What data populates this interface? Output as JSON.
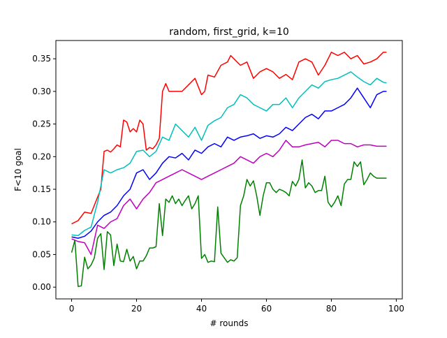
{
  "chart_data": {
    "type": "line",
    "title": "random, first_grid, k=10",
    "xlabel": "# rounds",
    "ylabel": "F<10 goal",
    "xlim": [
      -4.85,
      101.85
    ],
    "ylim": [
      -0.018,
      0.378
    ],
    "xticks": [
      0,
      20,
      40,
      60,
      80,
      100
    ],
    "xtick_labels": [
      "0",
      "20",
      "40",
      "60",
      "80",
      "100"
    ],
    "yticks": [
      0.0,
      0.05,
      0.1,
      0.15,
      0.2,
      0.25,
      0.3,
      0.35
    ],
    "ytick_labels": [
      "0.00",
      "0.05",
      "0.10",
      "0.15",
      "0.20",
      "0.25",
      "0.30",
      "0.35"
    ],
    "grid": false,
    "legend": "none",
    "series": [
      {
        "color": "#ff0000",
        "x": [
          0,
          2,
          4,
          6,
          8,
          9,
          10,
          11,
          12,
          13,
          14,
          15,
          16,
          17,
          18,
          19,
          20,
          21,
          22,
          23,
          24,
          25,
          26,
          27,
          28,
          29,
          30,
          32,
          34,
          36,
          38,
          40,
          41,
          42,
          44,
          46,
          48,
          49,
          50,
          52,
          54,
          56,
          58,
          60,
          62,
          64,
          66,
          68,
          70,
          72,
          74,
          76,
          78,
          80,
          82,
          84,
          86,
          88,
          90,
          92,
          94,
          96,
          97
        ],
        "y": [
          0.097,
          0.102,
          0.115,
          0.113,
          0.138,
          0.15,
          0.208,
          0.21,
          0.207,
          0.212,
          0.218,
          0.215,
          0.256,
          0.253,
          0.238,
          0.243,
          0.238,
          0.256,
          0.25,
          0.21,
          0.214,
          0.212,
          0.218,
          0.228,
          0.3,
          0.312,
          0.3,
          0.3,
          0.3,
          0.31,
          0.32,
          0.295,
          0.3,
          0.325,
          0.322,
          0.34,
          0.345,
          0.355,
          0.35,
          0.34,
          0.345,
          0.32,
          0.33,
          0.335,
          0.33,
          0.32,
          0.326,
          0.318,
          0.345,
          0.35,
          0.345,
          0.325,
          0.34,
          0.36,
          0.355,
          0.36,
          0.35,
          0.355,
          0.342,
          0.345,
          0.35,
          0.36,
          0.36
        ]
      },
      {
        "color": "#00bfbf",
        "x": [
          0,
          2,
          4,
          6,
          8,
          10,
          12,
          14,
          16,
          18,
          20,
          22,
          24,
          26,
          28,
          30,
          32,
          34,
          36,
          38,
          40,
          42,
          44,
          46,
          48,
          50,
          52,
          54,
          56,
          58,
          60,
          62,
          64,
          66,
          68,
          70,
          72,
          74,
          76,
          78,
          80,
          82,
          84,
          86,
          88,
          90,
          92,
          94,
          96,
          97
        ],
        "y": [
          0.08,
          0.079,
          0.087,
          0.092,
          0.13,
          0.18,
          0.175,
          0.18,
          0.183,
          0.19,
          0.208,
          0.21,
          0.2,
          0.208,
          0.23,
          0.225,
          0.25,
          0.24,
          0.23,
          0.245,
          0.225,
          0.248,
          0.255,
          0.26,
          0.275,
          0.28,
          0.295,
          0.29,
          0.28,
          0.275,
          0.27,
          0.28,
          0.28,
          0.29,
          0.275,
          0.29,
          0.3,
          0.31,
          0.305,
          0.315,
          0.318,
          0.32,
          0.325,
          0.33,
          0.322,
          0.315,
          0.31,
          0.32,
          0.314,
          0.313
        ]
      },
      {
        "color": "#0000ff",
        "x": [
          0,
          2,
          4,
          6,
          8,
          10,
          12,
          14,
          16,
          18,
          20,
          22,
          24,
          26,
          28,
          30,
          32,
          34,
          36,
          38,
          40,
          42,
          44,
          46,
          48,
          50,
          52,
          54,
          56,
          58,
          60,
          62,
          64,
          66,
          68,
          70,
          72,
          74,
          76,
          78,
          80,
          82,
          84,
          86,
          88,
          90,
          92,
          94,
          96,
          97
        ],
        "y": [
          0.077,
          0.075,
          0.078,
          0.086,
          0.1,
          0.11,
          0.115,
          0.125,
          0.14,
          0.15,
          0.175,
          0.18,
          0.165,
          0.175,
          0.19,
          0.2,
          0.198,
          0.205,
          0.195,
          0.21,
          0.205,
          0.215,
          0.22,
          0.215,
          0.23,
          0.225,
          0.23,
          0.232,
          0.235,
          0.228,
          0.232,
          0.23,
          0.235,
          0.245,
          0.24,
          0.25,
          0.26,
          0.265,
          0.258,
          0.27,
          0.27,
          0.275,
          0.28,
          0.29,
          0.305,
          0.29,
          0.275,
          0.295,
          0.3,
          0.3
        ]
      },
      {
        "color": "#bf00bf",
        "x": [
          0,
          2,
          4,
          6,
          8,
          10,
          12,
          14,
          16,
          18,
          20,
          22,
          24,
          26,
          28,
          30,
          32,
          34,
          36,
          38,
          40,
          42,
          44,
          46,
          48,
          50,
          52,
          54,
          56,
          58,
          60,
          62,
          64,
          66,
          68,
          70,
          72,
          74,
          76,
          78,
          80,
          82,
          84,
          86,
          88,
          90,
          92,
          94,
          96,
          97
        ],
        "y": [
          0.074,
          0.07,
          0.068,
          0.05,
          0.095,
          0.09,
          0.1,
          0.105,
          0.125,
          0.135,
          0.12,
          0.135,
          0.145,
          0.16,
          0.165,
          0.17,
          0.175,
          0.18,
          0.175,
          0.17,
          0.165,
          0.17,
          0.175,
          0.18,
          0.185,
          0.19,
          0.2,
          0.195,
          0.19,
          0.2,
          0.205,
          0.2,
          0.21,
          0.225,
          0.215,
          0.215,
          0.218,
          0.22,
          0.222,
          0.215,
          0.225,
          0.225,
          0.22,
          0.22,
          0.215,
          0.218,
          0.218,
          0.216,
          0.216,
          0.216
        ]
      },
      {
        "color": "#008000",
        "x": [
          0,
          1,
          2,
          3,
          4,
          5,
          6,
          7,
          8,
          9,
          10,
          11,
          12,
          13,
          14,
          15,
          16,
          17,
          18,
          19,
          20,
          21,
          22,
          23,
          24,
          25,
          26,
          27,
          28,
          29,
          30,
          31,
          32,
          33,
          34,
          35,
          36,
          37,
          38,
          39,
          40,
          41,
          42,
          43,
          44,
          45,
          46,
          47,
          48,
          49,
          50,
          51,
          52,
          53,
          54,
          55,
          56,
          57,
          58,
          59,
          60,
          61,
          62,
          63,
          64,
          65,
          66,
          67,
          68,
          69,
          70,
          71,
          72,
          73,
          74,
          75,
          76,
          77,
          78,
          79,
          80,
          81,
          82,
          83,
          84,
          85,
          86,
          87,
          88,
          89,
          90,
          91,
          92,
          93,
          94,
          95,
          96,
          97
        ],
        "y": [
          0.053,
          0.072,
          0.001,
          0.002,
          0.046,
          0.028,
          0.034,
          0.045,
          0.075,
          0.082,
          0.027,
          0.085,
          0.08,
          0.033,
          0.066,
          0.04,
          0.039,
          0.058,
          0.04,
          0.047,
          0.028,
          0.04,
          0.04,
          0.048,
          0.06,
          0.06,
          0.062,
          0.128,
          0.079,
          0.135,
          0.13,
          0.14,
          0.128,
          0.135,
          0.125,
          0.133,
          0.14,
          0.12,
          0.128,
          0.14,
          0.044,
          0.05,
          0.038,
          0.04,
          0.039,
          0.123,
          0.052,
          0.045,
          0.038,
          0.042,
          0.04,
          0.045,
          0.125,
          0.14,
          0.165,
          0.155,
          0.163,
          0.14,
          0.11,
          0.14,
          0.16,
          0.16,
          0.15,
          0.145,
          0.15,
          0.148,
          0.145,
          0.14,
          0.162,
          0.155,
          0.165,
          0.195,
          0.152,
          0.16,
          0.155,
          0.145,
          0.148,
          0.148,
          0.17,
          0.13,
          0.123,
          0.13,
          0.14,
          0.125,
          0.158,
          0.165,
          0.165,
          0.192,
          0.185,
          0.192,
          0.157,
          0.165,
          0.175,
          0.17,
          0.167,
          0.167,
          0.167,
          0.167
        ]
      }
    ]
  }
}
